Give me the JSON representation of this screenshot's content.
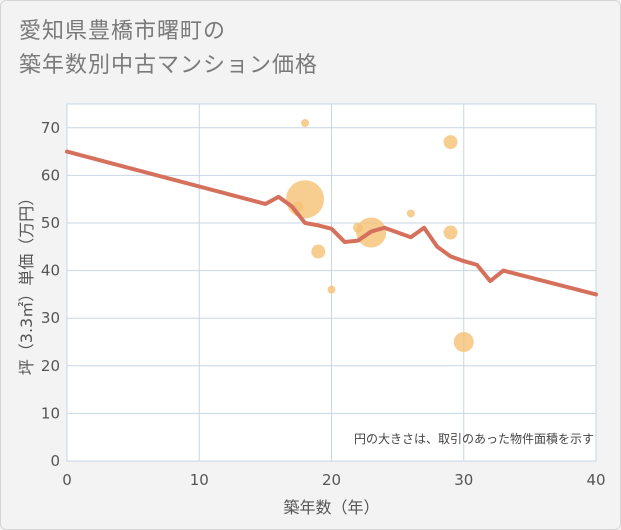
{
  "title": {
    "line1": "愛知県豊橋市曙町の",
    "line2": "築年数別中古マンション価格"
  },
  "colors": {
    "line": "#d4705c",
    "bubble": "#f5c074",
    "grid": "#c9d6e4",
    "plot_bg": "#ffffff"
  },
  "chart_data": {
    "type": "scatter",
    "xlabel": "築年数（年）",
    "ylabel": "坪（3.3㎡）単価（万円）",
    "xlim": [
      0,
      40
    ],
    "ylim": [
      0,
      75
    ],
    "xticks": [
      0,
      10,
      20,
      30,
      40
    ],
    "yticks": [
      0,
      10,
      20,
      30,
      40,
      50,
      60,
      70
    ],
    "note": "円の大きさは、取引のあった物件面積を示す",
    "bubbles": [
      {
        "x": 18,
        "y": 71,
        "r": 4
      },
      {
        "x": 18,
        "y": 55,
        "r": 19
      },
      {
        "x": 17.5,
        "y": 53.5,
        "r": 5
      },
      {
        "x": 19,
        "y": 44,
        "r": 7
      },
      {
        "x": 20,
        "y": 36,
        "r": 4
      },
      {
        "x": 22,
        "y": 49,
        "r": 5
      },
      {
        "x": 23,
        "y": 48,
        "r": 15
      },
      {
        "x": 26,
        "y": 52,
        "r": 4
      },
      {
        "x": 29,
        "y": 67,
        "r": 7
      },
      {
        "x": 29,
        "y": 48,
        "r": 7
      },
      {
        "x": 30,
        "y": 25,
        "r": 10
      }
    ],
    "trend": {
      "x": [
        0,
        15,
        16,
        17,
        18,
        19,
        20,
        21,
        22,
        23,
        24,
        25,
        26,
        27,
        28,
        29,
        30,
        31,
        32,
        33,
        40
      ],
      "y": [
        65,
        54,
        55.5,
        53.5,
        50,
        49.5,
        48.8,
        46,
        46.3,
        48.2,
        49,
        48,
        47,
        49,
        45,
        43,
        42,
        41.2,
        37.8,
        40,
        35
      ]
    }
  }
}
